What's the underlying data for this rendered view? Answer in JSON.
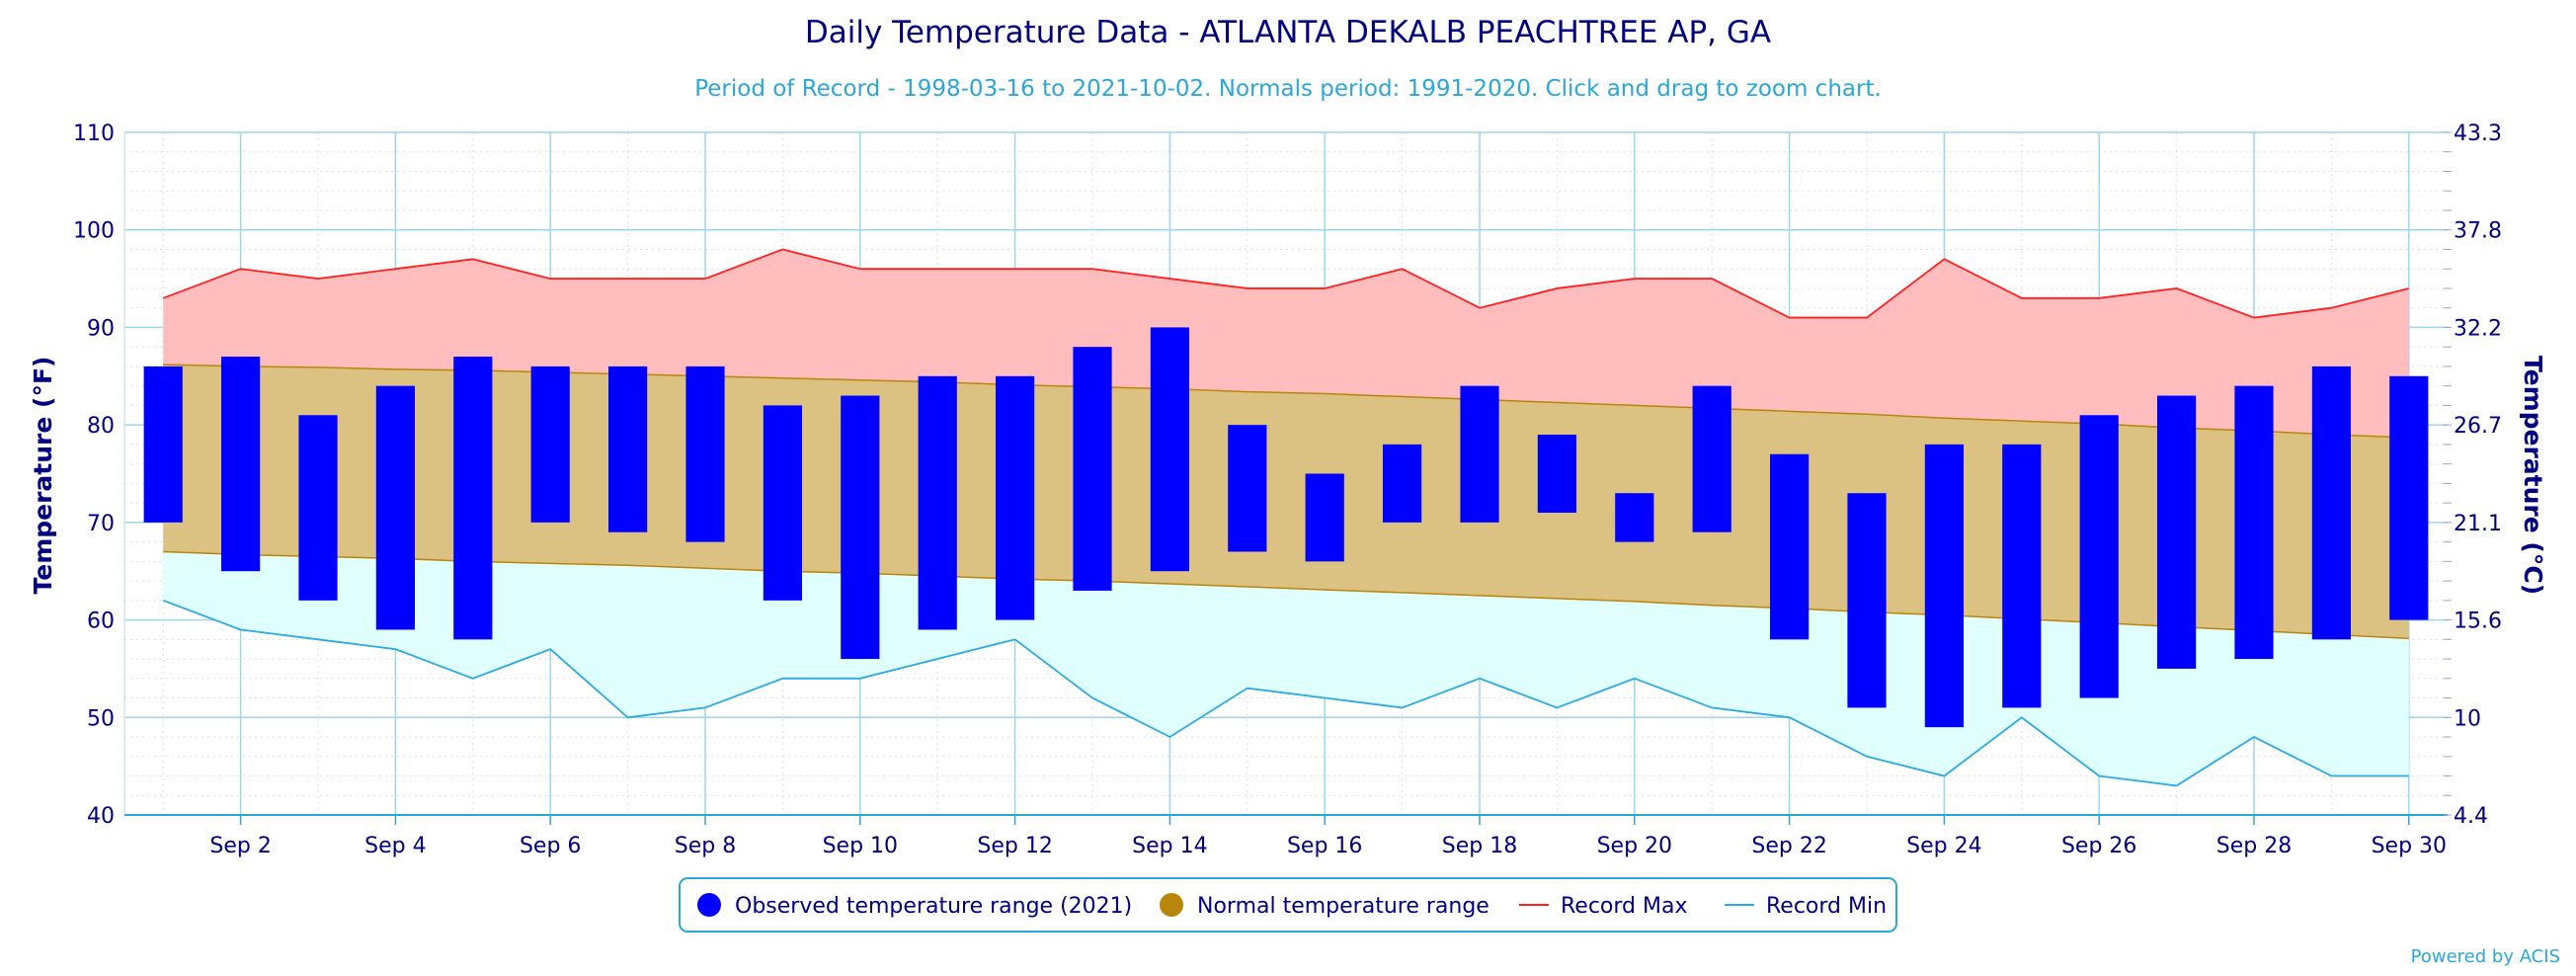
{
  "chart_data": {
    "type": "bar",
    "title": "Daily Temperature Data - ATLANTA DEKALB PEACHTREE AP, GA",
    "subtitle": "Period of Record - 1998-03-16 to 2021-10-02. Normals period: 1991-2020. Click and drag to zoom chart.",
    "credit": "Powered by ACIS",
    "ylabel": "Temperature (°F)",
    "y2label": "Temperature (°C)",
    "ylim": [
      40,
      110
    ],
    "yticks": [
      "40",
      "50",
      "60",
      "70",
      "80",
      "90",
      "100",
      "110"
    ],
    "y2ticks": [
      "4.4",
      "10",
      "15.6",
      "21.1",
      "26.7",
      "32.2",
      "37.8",
      "43.3"
    ],
    "xticks": [
      "Sep 2",
      "Sep 4",
      "Sep 6",
      "Sep 8",
      "Sep 10",
      "Sep 12",
      "Sep 14",
      "Sep 16",
      "Sep 18",
      "Sep 20",
      "Sep 22",
      "Sep 24",
      "Sep 26",
      "Sep 28",
      "Sep 30"
    ],
    "x": [
      1,
      2,
      3,
      4,
      5,
      6,
      7,
      8,
      9,
      10,
      11,
      12,
      13,
      14,
      15,
      16,
      17,
      18,
      19,
      20,
      21,
      22,
      23,
      24,
      25,
      26,
      27,
      28,
      29,
      30
    ],
    "grid": true,
    "legend_position": "bottom-center",
    "legend": [
      {
        "label": "Observed temperature range (2021)",
        "color": "#0000ff",
        "symbol": "circle"
      },
      {
        "label": "Normal temperature range",
        "color": "#b8860b",
        "symbol": "circle"
      },
      {
        "label": "Record Max",
        "color": "#ff2020",
        "symbol": "line"
      },
      {
        "label": "Record Min",
        "color": "#2aaae0",
        "symbol": "line"
      }
    ],
    "series": [
      {
        "name": "Observed temperature range (2021)",
        "color": "#0000ff",
        "low": [
          70,
          65,
          62,
          59,
          58,
          70,
          69,
          68,
          62,
          56,
          59,
          60,
          63,
          65,
          67,
          66,
          70,
          70,
          71,
          68,
          69,
          58,
          51,
          49,
          51,
          52,
          55,
          56,
          58,
          60
        ],
        "high": [
          86,
          87,
          81,
          84,
          87,
          86,
          86,
          86,
          82,
          83,
          85,
          85,
          88,
          90,
          80,
          75,
          78,
          84,
          79,
          73,
          84,
          77,
          73,
          78,
          78,
          81,
          83,
          84,
          86,
          85
        ]
      },
      {
        "name": "Normal temperature range",
        "color": "#b8860b",
        "low": [
          67,
          66.7,
          66.5,
          66.3,
          66,
          65.8,
          65.6,
          65.3,
          65,
          64.8,
          64.5,
          64.2,
          64,
          63.7,
          63.4,
          63.1,
          62.8,
          62.5,
          62.2,
          61.9,
          61.5,
          61.2,
          60.8,
          60.5,
          60.1,
          59.7,
          59.3,
          58.9,
          58.5,
          58.1
        ],
        "high": [
          86.2,
          86,
          85.9,
          85.7,
          85.6,
          85.4,
          85.2,
          85,
          84.8,
          84.6,
          84.4,
          84.1,
          83.9,
          83.7,
          83.4,
          83.2,
          82.9,
          82.6,
          82.3,
          82,
          81.7,
          81.4,
          81.1,
          80.7,
          80.4,
          80.1,
          79.7,
          79.4,
          79,
          78.7
        ]
      },
      {
        "name": "Record Max",
        "color": "#ff2020",
        "values": [
          93,
          96,
          95,
          96,
          97,
          95,
          95,
          95,
          98,
          96,
          96,
          96,
          96,
          95,
          94,
          94,
          96,
          92,
          94,
          95,
          95,
          91,
          91,
          97,
          93,
          93,
          94,
          91,
          92,
          94
        ]
      },
      {
        "name": "Record Min",
        "color": "#2aaae0",
        "values": [
          62,
          59,
          58,
          57,
          54,
          57,
          50,
          51,
          54,
          54,
          56,
          58,
          52,
          48,
          53,
          52,
          51,
          54,
          51,
          54,
          51,
          50,
          46,
          44,
          50,
          44,
          43,
          48,
          44,
          44
        ]
      }
    ]
  }
}
